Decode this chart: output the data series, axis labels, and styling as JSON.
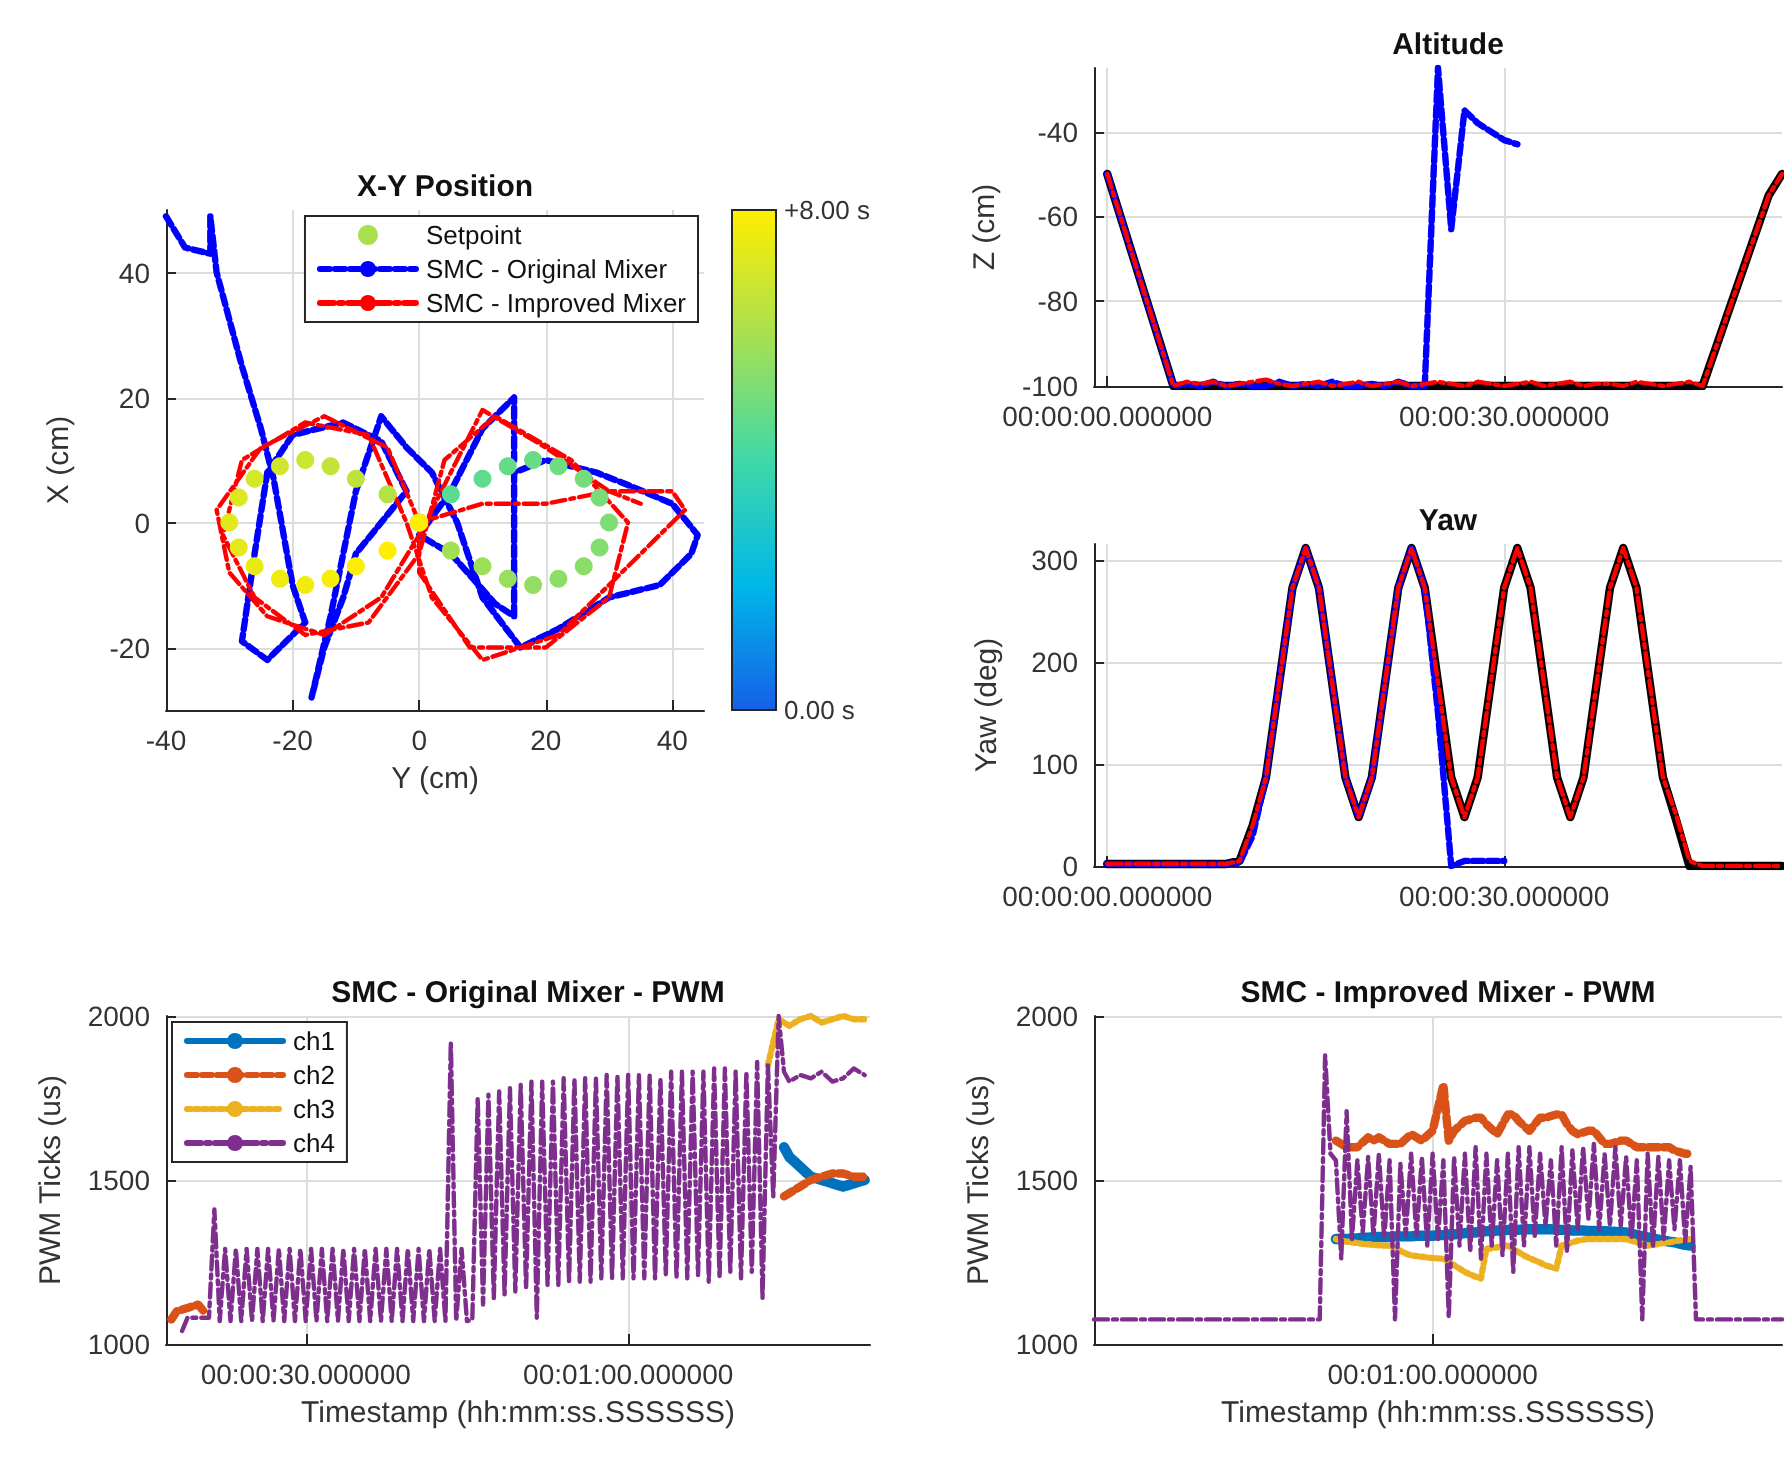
{
  "chart_data": [
    {
      "type": "line",
      "title": "X-Y Position",
      "xlabel": "Y (cm)",
      "ylabel": "X (cm)",
      "xlim": [
        -40,
        45
      ],
      "xticks": [
        -40,
        -20,
        0,
        20,
        40
      ],
      "ylim": [
        -30,
        50
      ],
      "yticks": [
        -20,
        0,
        20,
        40
      ],
      "grid": true,
      "legend": "top right",
      "clim": [
        0,
        8
      ],
      "cticks": [
        {
          "value": 0,
          "label": "0.00 s"
        },
        {
          "value": 8,
          "label": "+8.00 s"
        }
      ],
      "series": [
        {
          "name": "Setpoint",
          "type": "scatter",
          "marker": "circle",
          "colors": [
            "#55da96",
            "#5ada92",
            "#5fda8e",
            "#64db89",
            "#6adb85",
            "#6fdc80",
            "#74dc7c",
            "#79dc78",
            "#7edd73",
            "#84dd6f",
            "#89de6a",
            "#8ede66",
            "#93de62",
            "#98df5d",
            "#9edf59",
            "#a3e054",
            "#a8e050",
            "#b5e244",
            "#bee43c",
            "#c2e438",
            "#cbe630",
            "#cfe62c",
            "#d4e728",
            "#dce820",
            "#e1e91c",
            "#e5ea18",
            "#e9ea14",
            "#eeeb10",
            "#f2ec0c",
            "#f6ed08",
            "#fbed04",
            "#fdee02",
            "#ffee00"
          ],
          "x": [
            0,
            5,
            10,
            14,
            18,
            22,
            26,
            28.5,
            30,
            28.5,
            26,
            22,
            18,
            14,
            10,
            5,
            0,
            -5,
            -10,
            -14,
            -18,
            -22,
            -26,
            -28.5,
            -30,
            -28.5,
            -26,
            -22,
            -18,
            -14,
            -10,
            -5,
            0
          ],
          "values": [
            0,
            4.5,
            7,
            9,
            10,
            9,
            7,
            4,
            0,
            -4,
            -7,
            -9,
            -10,
            -9,
            -7,
            -4.5,
            0,
            4.5,
            7,
            9,
            10,
            9,
            7,
            4,
            0,
            -4,
            -7,
            -9,
            -10,
            -9,
            -7,
            -4.5,
            0
          ]
        },
        {
          "name": "SMC - Original Mixer",
          "color": "#0000ff",
          "line_style": "dashed",
          "x": [
            -40,
            -37,
            -33,
            -33,
            -32,
            -28,
            -25,
            -23,
            -20,
            -18,
            -24,
            -28,
            -26,
            -24,
            -20,
            -12,
            -6,
            -2,
            -10,
            -12,
            -15,
            -17,
            -14,
            -10,
            -6,
            -2,
            2,
            6,
            10,
            16,
            22,
            30,
            38,
            43,
            44,
            40,
            33,
            28,
            20,
            15,
            15,
            15,
            15,
            12,
            5,
            0,
            5,
            10,
            15,
            15
          ],
          "values": [
            49,
            44,
            43,
            49,
            40,
            25,
            15,
            7,
            -10,
            -16,
            -22,
            -19,
            -5,
            8,
            14,
            16,
            13,
            5,
            -5,
            -12,
            -20,
            -28,
            -15,
            5,
            17,
            12,
            8,
            0,
            -12,
            -20,
            -17,
            -12,
            -10,
            -5,
            -2,
            3,
            6,
            8,
            10,
            8,
            0,
            -10,
            -15,
            -13,
            -5,
            -2,
            5,
            15,
            20,
            10
          ]
        },
        {
          "name": "SMC - Improved Mixer",
          "color": "#ff0000",
          "line_style": "dashdot",
          "x": [
            0,
            -5,
            -15,
            -25,
            -32,
            -30,
            -24,
            -15,
            -6,
            0,
            5,
            10,
            20,
            30,
            40,
            42,
            32,
            22,
            10,
            2,
            -2,
            -8,
            -18,
            -28,
            -31,
            -26,
            -18,
            -8,
            0,
            4,
            12,
            24,
            33,
            30,
            20,
            8,
            0,
            0,
            10,
            20,
            30,
            35
          ],
          "values": [
            0,
            12,
            17,
            12,
            2,
            -8,
            -15,
            -18,
            -12,
            -2,
            8,
            18,
            12,
            5,
            5,
            2,
            -8,
            -18,
            -22,
            -12,
            0,
            14,
            16,
            10,
            -2,
            -12,
            -18,
            -16,
            -5,
            10,
            17,
            10,
            0,
            -12,
            -20,
            -20,
            -8,
            0,
            3,
            3,
            5,
            3
          ]
        }
      ]
    },
    {
      "type": "line",
      "title": "Altitude",
      "ylabel": "Z (cm)",
      "categories": [
        null,
        "00:00:00.000000",
        null,
        null,
        null,
        null,
        null,
        null,
        null,
        null,
        null,
        null,
        null,
        null,
        null,
        null,
        null,
        null,
        null,
        null,
        null,
        null,
        null,
        null,
        null,
        null,
        null,
        null,
        null,
        null,
        null,
        "00:00:30.000000",
        null,
        null,
        null,
        null,
        null,
        null,
        null,
        null,
        null,
        null,
        null,
        null,
        null,
        null,
        null,
        null,
        null,
        null,
        null,
        null,
        null
      ],
      "ylim": [
        -100,
        -25
      ],
      "yticks": [
        -100,
        -80,
        -60,
        -40
      ],
      "grid": true,
      "series": [
        {
          "color": "#000000",
          "line_style": "solid",
          "values": [
            null,
            -50,
            -60,
            -70,
            -80,
            -90,
            -100,
            -100,
            -100,
            -100,
            -100,
            -100,
            -100,
            -100,
            -100,
            -100,
            -100,
            -100,
            -100,
            -100,
            -100,
            -100,
            -100,
            -100,
            -100,
            -100,
            -100,
            -100,
            -100,
            -100,
            -100,
            -100,
            -100,
            -100,
            -100,
            -100,
            -100,
            -100,
            -100,
            -100,
            -100,
            -100,
            -100,
            -100,
            -100,
            -100,
            -100,
            -91,
            -82,
            -73,
            -64,
            -55,
            -50
          ]
        },
        {
          "color": "#0000ff",
          "line_style": "dashed",
          "values": [
            null,
            -50,
            -60,
            -70,
            -80,
            -90,
            -100,
            -99.5,
            -100,
            -99,
            -100,
            -99.5,
            -100,
            -100,
            -99,
            -100,
            -99.5,
            -100,
            -99,
            -100,
            -100,
            -99.5,
            -100,
            -99,
            -100,
            -100,
            -25,
            -63,
            -35,
            -38,
            -40,
            -42,
            -43,
            null,
            null,
            null,
            null,
            null,
            null,
            null,
            null,
            null,
            null,
            null,
            null,
            null,
            null,
            null,
            null,
            null,
            null,
            null,
            null
          ]
        },
        {
          "color": "#ff0000",
          "line_style": "dashdot",
          "values": [
            null,
            -50,
            -60,
            -70,
            -80,
            -90,
            -100,
            -99,
            -99.5,
            -99,
            -100,
            -99.5,
            -99,
            -98.5,
            -99.5,
            -100,
            -99.5,
            -99,
            -100,
            -99.5,
            -99,
            -100,
            -99.5,
            -99,
            -100,
            -99.5,
            -99,
            -99.5,
            -100,
            -99,
            -99.5,
            -100,
            -99.5,
            -99,
            -100,
            -99.5,
            -99,
            -100,
            -99.5,
            -99.5,
            -100,
            -99,
            -99.5,
            -100,
            -99.5,
            -99,
            -100,
            -91,
            -82,
            -73,
            -64,
            -55,
            -50
          ]
        }
      ]
    },
    {
      "type": "line",
      "title": "Yaw",
      "ylabel": "Yaw (deg)",
      "categories": [
        null,
        "00:00:00.000000",
        null,
        null,
        null,
        null,
        null,
        null,
        null,
        null,
        null,
        null,
        null,
        null,
        null,
        null,
        null,
        null,
        null,
        null,
        null,
        null,
        null,
        null,
        null,
        null,
        null,
        null,
        null,
        null,
        null,
        "00:00:30.000000",
        null,
        null,
        null,
        null,
        null,
        null,
        null,
        null,
        null,
        null,
        null,
        null,
        null,
        null,
        null,
        null,
        null,
        null,
        null,
        null,
        null
      ],
      "ylim": [
        0,
        316
      ],
      "yticks": [
        0,
        100,
        200,
        300
      ],
      "grid": true,
      "series": [
        {
          "color": "#000000",
          "line_style": "solid",
          "values": [
            null,
            2,
            2,
            2,
            2,
            2,
            2,
            2,
            2,
            2,
            2,
            5,
            40,
            87,
            180,
            273,
            312,
            273,
            180,
            87,
            48,
            87,
            180,
            273,
            312,
            273,
            180,
            87,
            48,
            87,
            180,
            273,
            312,
            273,
            180,
            87,
            48,
            87,
            180,
            273,
            312,
            273,
            180,
            87,
            45,
            0,
            0,
            0,
            0,
            0,
            0,
            0,
            0
          ]
        },
        {
          "color": "#0000ff",
          "line_style": "dashed",
          "values": [
            null,
            2,
            2,
            2,
            2,
            2,
            2,
            2,
            2,
            2,
            2,
            3,
            30,
            87,
            180,
            273,
            312,
            273,
            180,
            87,
            48,
            87,
            180,
            273,
            312,
            273,
            150,
            0,
            5,
            5,
            5,
            5,
            null,
            null,
            null,
            null,
            null,
            null,
            null,
            null,
            null,
            null,
            null,
            null,
            null,
            null,
            null,
            null,
            null,
            null,
            null,
            null,
            null
          ]
        },
        {
          "color": "#ff0000",
          "line_style": "dashdot",
          "values": [
            null,
            2,
            2,
            2,
            2,
            2,
            2,
            2,
            2,
            2,
            2,
            5,
            40,
            87,
            180,
            273,
            312,
            273,
            180,
            87,
            48,
            87,
            180,
            273,
            312,
            273,
            180,
            87,
            48,
            87,
            180,
            273,
            312,
            273,
            180,
            87,
            48,
            87,
            180,
            273,
            312,
            273,
            180,
            87,
            50,
            5,
            0,
            0,
            0,
            0,
            0,
            0,
            0
          ]
        }
      ]
    },
    {
      "type": "line",
      "title": "SMC - Original Mixer - PWM",
      "xlabel": "Timestamp (hh:mm:ss.SSSSSS)",
      "ylabel": "PWM Ticks (us)",
      "categories": [
        null,
        null,
        null,
        null,
        null,
        null,
        null,
        null,
        null,
        null,
        null,
        null,
        null,
        null,
        null,
        null,
        null,
        null,
        null,
        null,
        null,
        null,
        null,
        null,
        null,
        null,
        "00:00:30.000000",
        null,
        null,
        null,
        null,
        null,
        null,
        null,
        null,
        null,
        null,
        null,
        null,
        null,
        null,
        null,
        null,
        null,
        null,
        null,
        null,
        null,
        null,
        null,
        null,
        null,
        null,
        null,
        null,
        null,
        null,
        null,
        null,
        null,
        null,
        null,
        null,
        null,
        null,
        null,
        null,
        null,
        null,
        null,
        null,
        null,
        null,
        null,
        null,
        null,
        null,
        null,
        null,
        null,
        null,
        null,
        null,
        null,
        null,
        null,
        "00:01:00.000000",
        null,
        null,
        null,
        null,
        null,
        null,
        null,
        null,
        null,
        null,
        null,
        null,
        null,
        null,
        null,
        null,
        null,
        null,
        null,
        null,
        null,
        null,
        null,
        null,
        null,
        null,
        null,
        null,
        null,
        null,
        null,
        null,
        null,
        null,
        null,
        null,
        null,
        null,
        null,
        null,
        null,
        null,
        null,
        null,
        null
      ],
      "ylim": [
        1000,
        2000
      ],
      "yticks": [
        1000,
        1500,
        2000
      ],
      "grid": true,
      "legend": "top left",
      "series": [
        {
          "name": "ch1",
          "color": "#0072bd",
          "line_style": "solid",
          "values": [
            null,
            null,
            null,
            null,
            null,
            null,
            null,
            null,
            null,
            null,
            null,
            null,
            null,
            null,
            null,
            null,
            null,
            null,
            null,
            null,
            null,
            null,
            null,
            null,
            null,
            null,
            null,
            null,
            null,
            null,
            null,
            null,
            null,
            null,
            null,
            null,
            null,
            null,
            null,
            null,
            null,
            null,
            null,
            null,
            null,
            null,
            null,
            null,
            null,
            null,
            null,
            null,
            null,
            null,
            null,
            null,
            null,
            null,
            null,
            null,
            null,
            null,
            null,
            null,
            null,
            null,
            null,
            null,
            null,
            null,
            null,
            null,
            null,
            null,
            null,
            null,
            null,
            null,
            null,
            null,
            null,
            null,
            null,
            null,
            null,
            null,
            null,
            null,
            null,
            null,
            null,
            null,
            null,
            null,
            null,
            null,
            null,
            null,
            null,
            null,
            null,
            null,
            null,
            null,
            null,
            null,
            null,
            null,
            null,
            null,
            null,
            null,
            null,
            null,
            null,
            1600,
            1570,
            1555,
            1540,
            1525,
            1510,
            1505,
            1500,
            1495,
            1490,
            1485,
            1480,
            1485,
            1490,
            1495,
            1500,
            null
          ]
        },
        {
          "name": "ch2",
          "color": "#d95319",
          "line_style": "dashed",
          "values": [
            null,
            1075,
            1100,
            1105,
            1110,
            1115,
            1120,
            1100,
            null,
            null,
            null,
            null,
            null,
            null,
            null,
            null,
            null,
            null,
            null,
            null,
            null,
            null,
            null,
            null,
            null,
            null,
            null,
            null,
            null,
            null,
            null,
            null,
            null,
            null,
            null,
            null,
            null,
            null,
            null,
            null,
            null,
            null,
            null,
            null,
            null,
            null,
            null,
            null,
            null,
            null,
            null,
            null,
            null,
            null,
            null,
            null,
            null,
            null,
            null,
            null,
            null,
            null,
            null,
            null,
            null,
            null,
            null,
            null,
            null,
            null,
            null,
            null,
            null,
            null,
            null,
            null,
            null,
            null,
            null,
            null,
            null,
            null,
            null,
            null,
            null,
            null,
            null,
            null,
            null,
            null,
            null,
            null,
            null,
            null,
            null,
            null,
            null,
            null,
            null,
            null,
            null,
            null,
            null,
            null,
            null,
            null,
            null,
            null,
            null,
            null,
            null,
            null,
            null,
            null,
            null,
            1450,
            1460,
            1470,
            1480,
            1490,
            1500,
            1505,
            1510,
            1515,
            1520,
            1520,
            1520,
            1515,
            1510,
            1510,
            1510,
            null
          ]
        },
        {
          "name": "ch3",
          "color": "#edb120",
          "line_style": "dotted",
          "values": [
            null,
            null,
            null,
            null,
            null,
            null,
            null,
            null,
            null,
            null,
            null,
            null,
            null,
            null,
            null,
            null,
            null,
            null,
            null,
            null,
            null,
            null,
            null,
            null,
            null,
            null,
            null,
            null,
            null,
            null,
            null,
            null,
            null,
            null,
            null,
            null,
            null,
            null,
            null,
            null,
            null,
            null,
            null,
            null,
            null,
            null,
            null,
            null,
            null,
            null,
            null,
            null,
            null,
            null,
            null,
            null,
            null,
            null,
            null,
            null,
            null,
            null,
            null,
            null,
            null,
            null,
            null,
            null,
            null,
            null,
            null,
            null,
            null,
            null,
            null,
            null,
            null,
            null,
            null,
            null,
            null,
            null,
            null,
            null,
            null,
            null,
            null,
            null,
            null,
            null,
            null,
            null,
            null,
            null,
            null,
            null,
            null,
            null,
            null,
            null,
            null,
            null,
            null,
            null,
            null,
            null,
            null,
            null,
            null,
            null,
            null,
            null,
            1850,
            1920,
            1990,
            1980,
            1970,
            1980,
            1990,
            1995,
            2000,
            1990,
            1980,
            1985,
            1990,
            1995,
            2000,
            1995,
            1990,
            1990,
            1990,
            null
          ]
        },
        {
          "name": "ch4",
          "color": "#7e2f8e",
          "line_style": "dashdot",
          "values": [
            null,
            null,
            null,
            1040,
            1080,
            1080,
            1080,
            1080,
            1080,
            1410,
            1070,
            1290,
            1070,
            1290,
            1070,
            1290,
            1070,
            1290,
            1070,
            1290,
            1070,
            1290,
            1070,
            1290,
            1070,
            1290,
            1070,
            1290,
            1070,
            1290,
            1070,
            1290,
            1070,
            1290,
            1070,
            1290,
            1070,
            1290,
            1070,
            1290,
            1070,
            1290,
            1070,
            1290,
            1070,
            1290,
            1070,
            1290,
            1070,
            1290,
            1070,
            1290,
            1070,
            1920,
            1070,
            1290,
            1070,
            1075,
            1750,
            1120,
            1760,
            1140,
            1770,
            1150,
            1780,
            1160,
            1790,
            1170,
            1800,
            1080,
            1800,
            1180,
            1800,
            1180,
            1810,
            1190,
            1810,
            1190,
            1810,
            1190,
            1810,
            1200,
            1820,
            1200,
            1820,
            1200,
            1820,
            1200,
            1820,
            1200,
            1820,
            1200,
            1810,
            1210,
            1830,
            1200,
            1830,
            1200,
            1830,
            1210,
            1830,
            1190,
            1840,
            1200,
            1840,
            1220,
            1830,
            1200,
            1830,
            1220,
            1860,
            1140,
            1850,
            1450,
            2000,
            1830,
            1800,
            1810,
            1820,
            1815,
            1810,
            1820,
            1830,
            1815,
            1800,
            1805,
            1810,
            1825,
            1840,
            1830,
            1820,
            null
          ]
        }
      ]
    },
    {
      "type": "line",
      "title": "SMC - Improved Mixer - PWM",
      "xlabel": "Timestamp (hh:mm:ss.SSSSSS)",
      "ylabel": "PWM Ticks (us)",
      "categories": [
        null,
        null,
        null,
        null,
        null,
        null,
        null,
        null,
        null,
        null,
        null,
        null,
        null,
        null,
        null,
        null,
        null,
        null,
        null,
        null,
        null,
        null,
        null,
        null,
        null,
        null,
        null,
        null,
        null,
        null,
        null,
        null,
        null,
        null,
        null,
        null,
        null,
        null,
        null,
        null,
        null,
        null,
        null,
        null,
        null,
        null,
        null,
        null,
        null,
        null,
        null,
        null,
        null,
        null,
        null,
        null,
        null,
        null,
        null,
        null,
        null,
        null,
        null,
        "00:01:00.000000",
        null,
        null,
        null,
        null,
        null,
        null,
        null,
        null,
        null,
        null,
        null,
        null,
        null,
        null,
        null,
        null,
        null,
        null,
        null,
        null,
        null,
        null,
        null,
        null,
        null,
        null,
        null,
        null,
        null,
        null,
        null,
        null,
        null,
        null,
        null,
        null,
        null,
        null,
        null,
        null,
        null,
        null,
        null,
        null,
        null,
        null,
        null,
        null,
        null,
        null,
        null,
        null,
        null,
        null,
        null,
        null,
        null,
        null,
        null,
        null,
        null,
        null,
        null,
        null,
        null
      ],
      "ylim": [
        1000,
        2000
      ],
      "yticks": [
        1000,
        1500,
        2000
      ],
      "grid": true,
      "series": [
        {
          "color": "#0072bd",
          "line_style": "solid",
          "values": [
            null,
            null,
            null,
            null,
            null,
            null,
            null,
            null,
            null,
            null,
            null,
            null,
            null,
            null,
            null,
            null,
            null,
            null,
            null,
            null,
            null,
            null,
            null,
            null,
            null,
            null,
            null,
            null,
            null,
            null,
            null,
            null,
            null,
            null,
            null,
            null,
            null,
            null,
            null,
            null,
            null,
            null,
            null,
            null,
            null,
            1320,
            1320,
            1320,
            1322,
            1322,
            1324,
            1324,
            1326,
            1326,
            1326,
            1326,
            1328,
            1328,
            1328,
            1328,
            1330,
            1330,
            1330,
            1330,
            1332,
            1332,
            1334,
            1334,
            1336,
            1338,
            1340,
            1340,
            1342,
            1344,
            1344,
            1346,
            1346,
            1348,
            1348,
            1348,
            1350,
            1350,
            1350,
            1350,
            1350,
            1350,
            1348,
            1348,
            1348,
            1346,
            1346,
            1346,
            1345,
            1345,
            1344,
            1344,
            1343,
            1342,
            1341,
            1340,
            1336,
            1332,
            1328,
            1325,
            1322,
            1318,
            1315,
            1312,
            1310,
            1306,
            1302,
            1300,
            null,
            null,
            null,
            null,
            null,
            null,
            null,
            null,
            null,
            null,
            null,
            null,
            null,
            null,
            null,
            null,
            null
          ]
        },
        {
          "color": "#d95319",
          "line_style": "dashed",
          "values": [
            null,
            null,
            null,
            null,
            null,
            null,
            null,
            null,
            null,
            null,
            null,
            null,
            null,
            null,
            null,
            null,
            null,
            null,
            null,
            null,
            null,
            null,
            null,
            null,
            null,
            null,
            null,
            null,
            null,
            null,
            null,
            null,
            null,
            null,
            null,
            null,
            null,
            null,
            null,
            null,
            null,
            null,
            null,
            null,
            null,
            1620,
            1610,
            1600,
            1600,
            1600,
            1615,
            1630,
            1620,
            1630,
            1620,
            1610,
            1610,
            1610,
            1625,
            1640,
            1630,
            1620,
            1635,
            1650,
            1720,
            1790,
            1620,
            1650,
            1665,
            1680,
            1685,
            1690,
            1690,
            1670,
            1655,
            1640,
            1670,
            1700,
            1700,
            1680,
            1665,
            1650,
            1670,
            1690,
            1690,
            1695,
            1700,
            1700,
            1670,
            1650,
            1640,
            1645,
            1650,
            1650,
            1630,
            1610,
            1610,
            1615,
            1620,
            1620,
            1610,
            1600,
            1600,
            1600,
            1600,
            1600,
            1600,
            1600,
            1590,
            1585,
            1580,
            1580,
            null,
            null,
            null,
            null,
            null,
            null,
            null,
            null,
            null,
            null,
            null,
            null,
            null,
            null,
            null,
            null,
            null
          ]
        },
        {
          "color": "#edb120",
          "line_style": "dotted",
          "values": [
            null,
            null,
            null,
            null,
            null,
            null,
            null,
            null,
            null,
            null,
            null,
            null,
            null,
            null,
            null,
            null,
            null,
            null,
            null,
            null,
            null,
            null,
            null,
            null,
            null,
            null,
            null,
            null,
            null,
            null,
            null,
            null,
            null,
            null,
            null,
            null,
            null,
            null,
            null,
            null,
            null,
            null,
            null,
            null,
            null,
            1320,
            1315,
            1312,
            1310,
            1308,
            1305,
            1304,
            1302,
            1301,
            1300,
            1300,
            1292,
            1284,
            1276,
            1270,
            1268,
            1266,
            1264,
            1262,
            1261,
            1260,
            1250,
            1240,
            1230,
            1220,
            1212,
            1205,
            1200,
            1290,
            1292,
            1295,
            1298,
            1300,
            1290,
            1280,
            1270,
            1262,
            1255,
            1248,
            1240,
            1235,
            1230,
            1300,
            1305,
            1310,
            1315,
            1318,
            1320,
            1320,
            1320,
            1320,
            1320,
            1320,
            1320,
            1320,
            1315,
            1310,
            1305,
            1300,
            1302,
            1305,
            1308,
            1310,
            1313,
            1316,
            1318,
            1320,
            null,
            null,
            null,
            null,
            null,
            null,
            null,
            null,
            null,
            null,
            null,
            null,
            null,
            null,
            null,
            null,
            null
          ]
        },
        {
          "color": "#7e2f8e",
          "line_style": "dashdot",
          "values": [
            1075,
            1075,
            1075,
            1075,
            1075,
            1075,
            1075,
            1075,
            1075,
            1075,
            1075,
            1075,
            1075,
            1075,
            1075,
            1075,
            1075,
            1075,
            1075,
            1075,
            1075,
            1075,
            1075,
            1075,
            1075,
            1075,
            1075,
            1075,
            1075,
            1075,
            1075,
            1075,
            1075,
            1075,
            1075,
            1075,
            1075,
            1075,
            1075,
            1075,
            1075,
            1075,
            1075,
            1880,
            1580,
            1560,
            1260,
            1710,
            1320,
            1560,
            1340,
            1570,
            1330,
            1580,
            1320,
            1560,
            1075,
            1550,
            1330,
            1580,
            1330,
            1570,
            1300,
            1580,
            1320,
            1560,
            1080,
            1570,
            1300,
            1580,
            1280,
            1600,
            1260,
            1580,
            1300,
            1560,
            1270,
            1580,
            1220,
            1600,
            1300,
            1600,
            1330,
            1580,
            1360,
            1560,
            1300,
            1600,
            1280,
            1590,
            1350,
            1600,
            1380,
            1610,
            1350,
            1580,
            1360,
            1600,
            1360,
            1570,
            1320,
            1560,
            1075,
            1580,
            1300,
            1570,
            1320,
            1560,
            1350,
            1560,
            1310,
            1540,
            1075,
            1075,
            1075,
            1075,
            1075,
            1075,
            1075,
            1075,
            1075,
            1075,
            1075,
            1075,
            1075,
            1075,
            1075,
            1075,
            1075
          ]
        }
      ]
    }
  ]
}
